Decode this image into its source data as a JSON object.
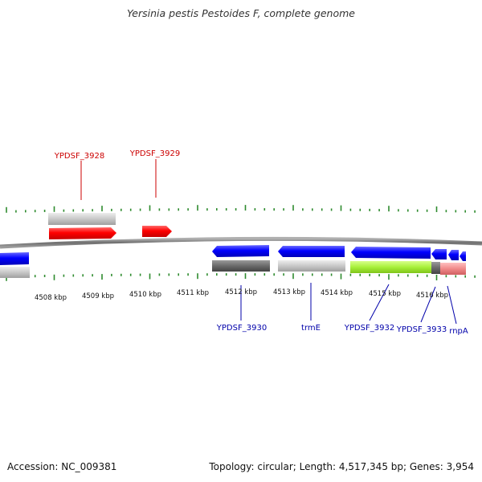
{
  "title": "Yersinia pestis Pestoides F, complete genome",
  "footer": {
    "accession": "Accession: NC_009381",
    "stats": "Topology: circular; Length: 4,517,345 bp; Genes: 3,954"
  },
  "colors": {
    "forward_gene": "#ff0000",
    "reverse_gene": "#0000ff",
    "forward_label": "#cc0000",
    "reverse_label": "#0000aa",
    "tick": "#2e8b2e",
    "backbone": "#808080"
  },
  "scale_labels": [
    "4508 kbp",
    "4509 kbp",
    "4510 kbp",
    "4511 kbp",
    "4512 kbp",
    "4513 kbp",
    "4514 kbp",
    "4515 kbp",
    "4516 kbp"
  ],
  "gene_labels": [
    {
      "id": "YPDSF_3928",
      "text": "YPDSF_3928",
      "strand": "forward"
    },
    {
      "id": "YPDSF_3929",
      "text": "YPDSF_3929",
      "strand": "forward"
    },
    {
      "id": "YPDSF_3930",
      "text": "YPDSF_3930",
      "strand": "reverse"
    },
    {
      "id": "trmE",
      "text": "trmE",
      "strand": "reverse"
    },
    {
      "id": "YPDSF_3932",
      "text": "YPDSF_3932",
      "strand": "reverse"
    },
    {
      "id": "YPDSF_3933",
      "text": "YPDSF_3933",
      "strand": "reverse"
    },
    {
      "id": "rnpA",
      "text": "rnpA",
      "strand": "reverse"
    }
  ]
}
